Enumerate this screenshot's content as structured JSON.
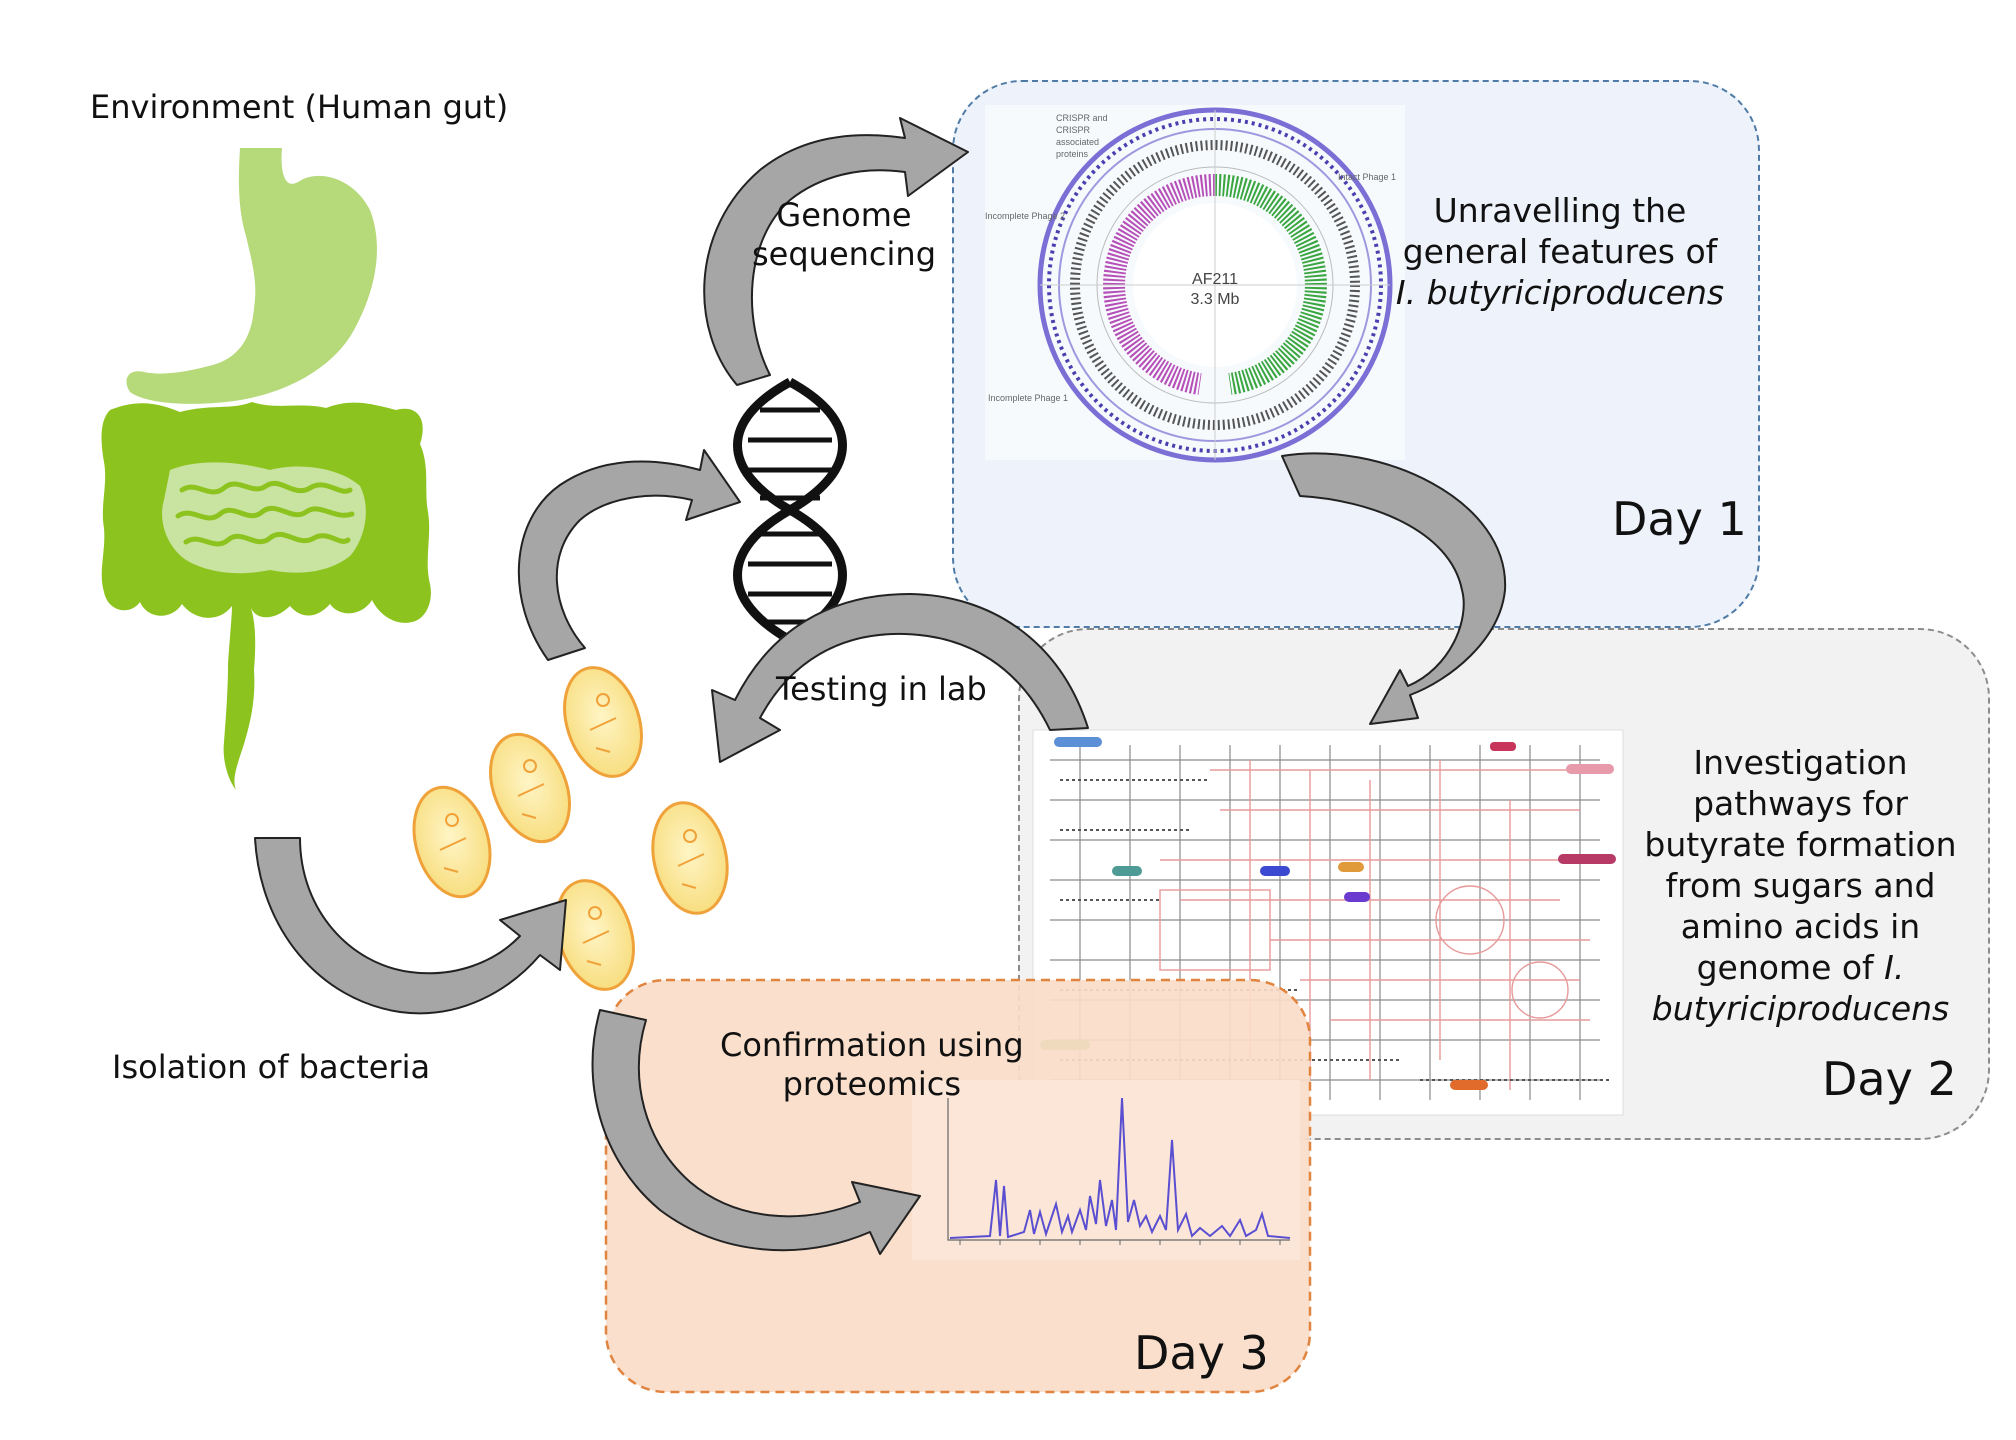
{
  "diagram": {
    "environment_label": "Environment (Human gut)",
    "isolation_label": "Isolation of bacteria",
    "genome_sequencing_line1": "Genome",
    "genome_sequencing_line2": "sequencing",
    "testing_label": "Testing in lab",
    "confirmation_line1": "Confirmation using",
    "confirmation_line2": "proteomics"
  },
  "day1": {
    "label": "Day 1",
    "desc_line1": "Unravelling the",
    "desc_line2": "general features of",
    "desc_line3": "I. butyriciproducens",
    "genome_map": {
      "center_line1": "AF211",
      "center_line2": "3.3 Mb",
      "labels": {
        "crispr1": "CRISPR and",
        "crispr2": "CRISPR",
        "crispr3": "associated",
        "crispr4": "proteins",
        "intact1": "Intact Phage 1",
        "incomplete2": "Incomplete Phage 2",
        "incomplete1": "Incomplete Phage 1"
      }
    }
  },
  "day2": {
    "label": "Day 2",
    "desc_lines": [
      "Investigation",
      "pathways for",
      "butyrate formation",
      "from sugars and",
      "amino acids in"
    ],
    "desc_line6_a": "genome of ",
    "desc_line6_b": "I.",
    "desc_line7": "butyriciproducens"
  },
  "day3": {
    "label": "Day 3"
  },
  "colors": {
    "gut_small": "#8dc31e",
    "gut_stomach": "#b6d97a",
    "panel1_fill": "#eef3fb",
    "panel1_border": "#4f7ba6",
    "panel2_fill": "#f2f2f2",
    "panel2_border": "#8c8c8c",
    "panel3_fill": "#f9dcc8",
    "panel3_border": "#e0843f",
    "arrow_fill": "#a6a6a6",
    "bacteria_fill": "#fce89a",
    "bacteria_edge": "#f0a23a"
  }
}
